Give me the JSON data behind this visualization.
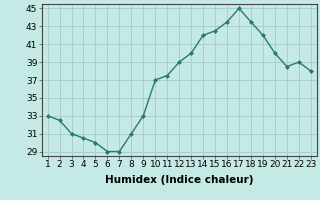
{
  "x": [
    1,
    2,
    3,
    4,
    5,
    6,
    7,
    8,
    9,
    10,
    11,
    12,
    13,
    14,
    15,
    16,
    17,
    18,
    19,
    20,
    21,
    22,
    23
  ],
  "y": [
    33,
    32.5,
    31,
    30.5,
    30,
    29,
    29,
    31,
    33,
    37,
    37.5,
    39,
    40,
    42,
    42.5,
    43.5,
    45,
    43.5,
    42,
    40,
    38.5,
    39,
    38
  ],
  "line_color": "#2a7a6a",
  "marker": "D",
  "marker_size": 2.0,
  "bg_color": "#c5eae6",
  "grid_color": "#aacfcc",
  "xlabel": "Humidex (Indice chaleur)",
  "ylim_min": 28.5,
  "ylim_max": 45.5,
  "xlim_min": 0.5,
  "xlim_max": 23.5,
  "yticks": [
    29,
    31,
    33,
    35,
    37,
    39,
    41,
    43,
    45
  ],
  "xticks": [
    1,
    2,
    3,
    4,
    5,
    6,
    7,
    8,
    9,
    10,
    11,
    12,
    13,
    14,
    15,
    16,
    17,
    18,
    19,
    20,
    21,
    22,
    23
  ],
  "xlabel_fontsize": 7.5,
  "tick_fontsize": 6.5,
  "line_width": 1.0
}
